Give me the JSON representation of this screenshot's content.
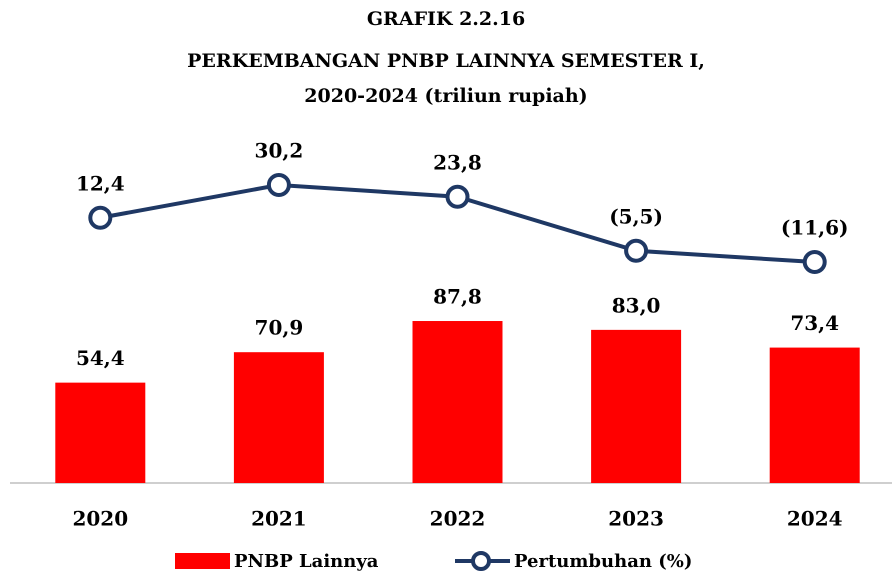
{
  "chart_data": {
    "type": "bar-line",
    "title": [
      "GRAFIK 2.2.16",
      "PERKEMBANGAN PNBP LAINNYA SEMESTER I,",
      "2020-2024 (triliun rupiah)"
    ],
    "categories": [
      "2020",
      "2021",
      "2022",
      "2023",
      "2024"
    ],
    "series": [
      {
        "name": "PNBP Lainnya",
        "type": "bar",
        "color": "#ff0000",
        "values": [
          54.4,
          70.9,
          87.8,
          83.0,
          73.4
        ],
        "value_labels": [
          "54,4",
          "70,9",
          "87,8",
          "83,0",
          "73,4"
        ]
      },
      {
        "name": "Pertumbuhan (%)",
        "type": "line",
        "axis": "y2",
        "color": "#1f3864",
        "values": [
          12.4,
          30.2,
          23.8,
          -5.5,
          -11.6
        ],
        "value_labels": [
          "12,4",
          "30,2",
          "23,8",
          "(5,5)",
          "(11,6)"
        ]
      }
    ],
    "ylim": [
      0,
      207.6
    ],
    "y2lim": [
      -131.5,
      76.3
    ],
    "legend": "bottom"
  }
}
